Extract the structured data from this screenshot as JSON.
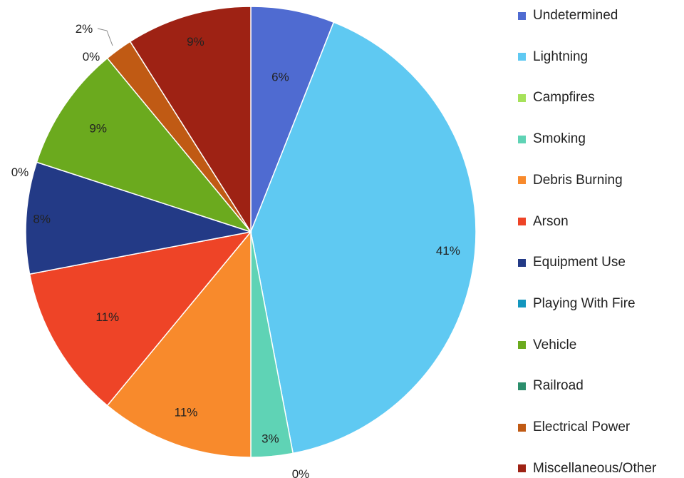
{
  "chart_data": {
    "type": "pie",
    "title": "",
    "legend_position": "right",
    "slices": [
      {
        "name": "Undetermined",
        "value": 6,
        "label": "6%",
        "color": "#4F6BD1"
      },
      {
        "name": "Lightning",
        "value": 41,
        "label": "41%",
        "color": "#5FC9F2"
      },
      {
        "name": "Campfires",
        "value": 0,
        "label": "0%",
        "color": "#A6E25A"
      },
      {
        "name": "Smoking",
        "value": 3,
        "label": "3%",
        "color": "#5FD3B5"
      },
      {
        "name": "Debris Burning",
        "value": 11,
        "label": "11%",
        "color": "#F88A2C"
      },
      {
        "name": "Arson",
        "value": 11,
        "label": "11%",
        "color": "#EE4427"
      },
      {
        "name": "Equipment Use",
        "value": 8,
        "label": "8%",
        "color": "#233A86"
      },
      {
        "name": "Playing With Fire",
        "value": 0,
        "label": "0%",
        "color": "#1396BE"
      },
      {
        "name": "Vehicle",
        "value": 9,
        "label": "9%",
        "color": "#6BAA1E"
      },
      {
        "name": "Railroad",
        "value": 0,
        "label": "0%",
        "color": "#2B8E6C"
      },
      {
        "name": "Electrical Power",
        "value": 2,
        "label": "2%",
        "color": "#C05A14"
      },
      {
        "name": "Miscellaneous/Other",
        "value": 9,
        "label": "9%",
        "color": "#9E2214"
      }
    ]
  }
}
